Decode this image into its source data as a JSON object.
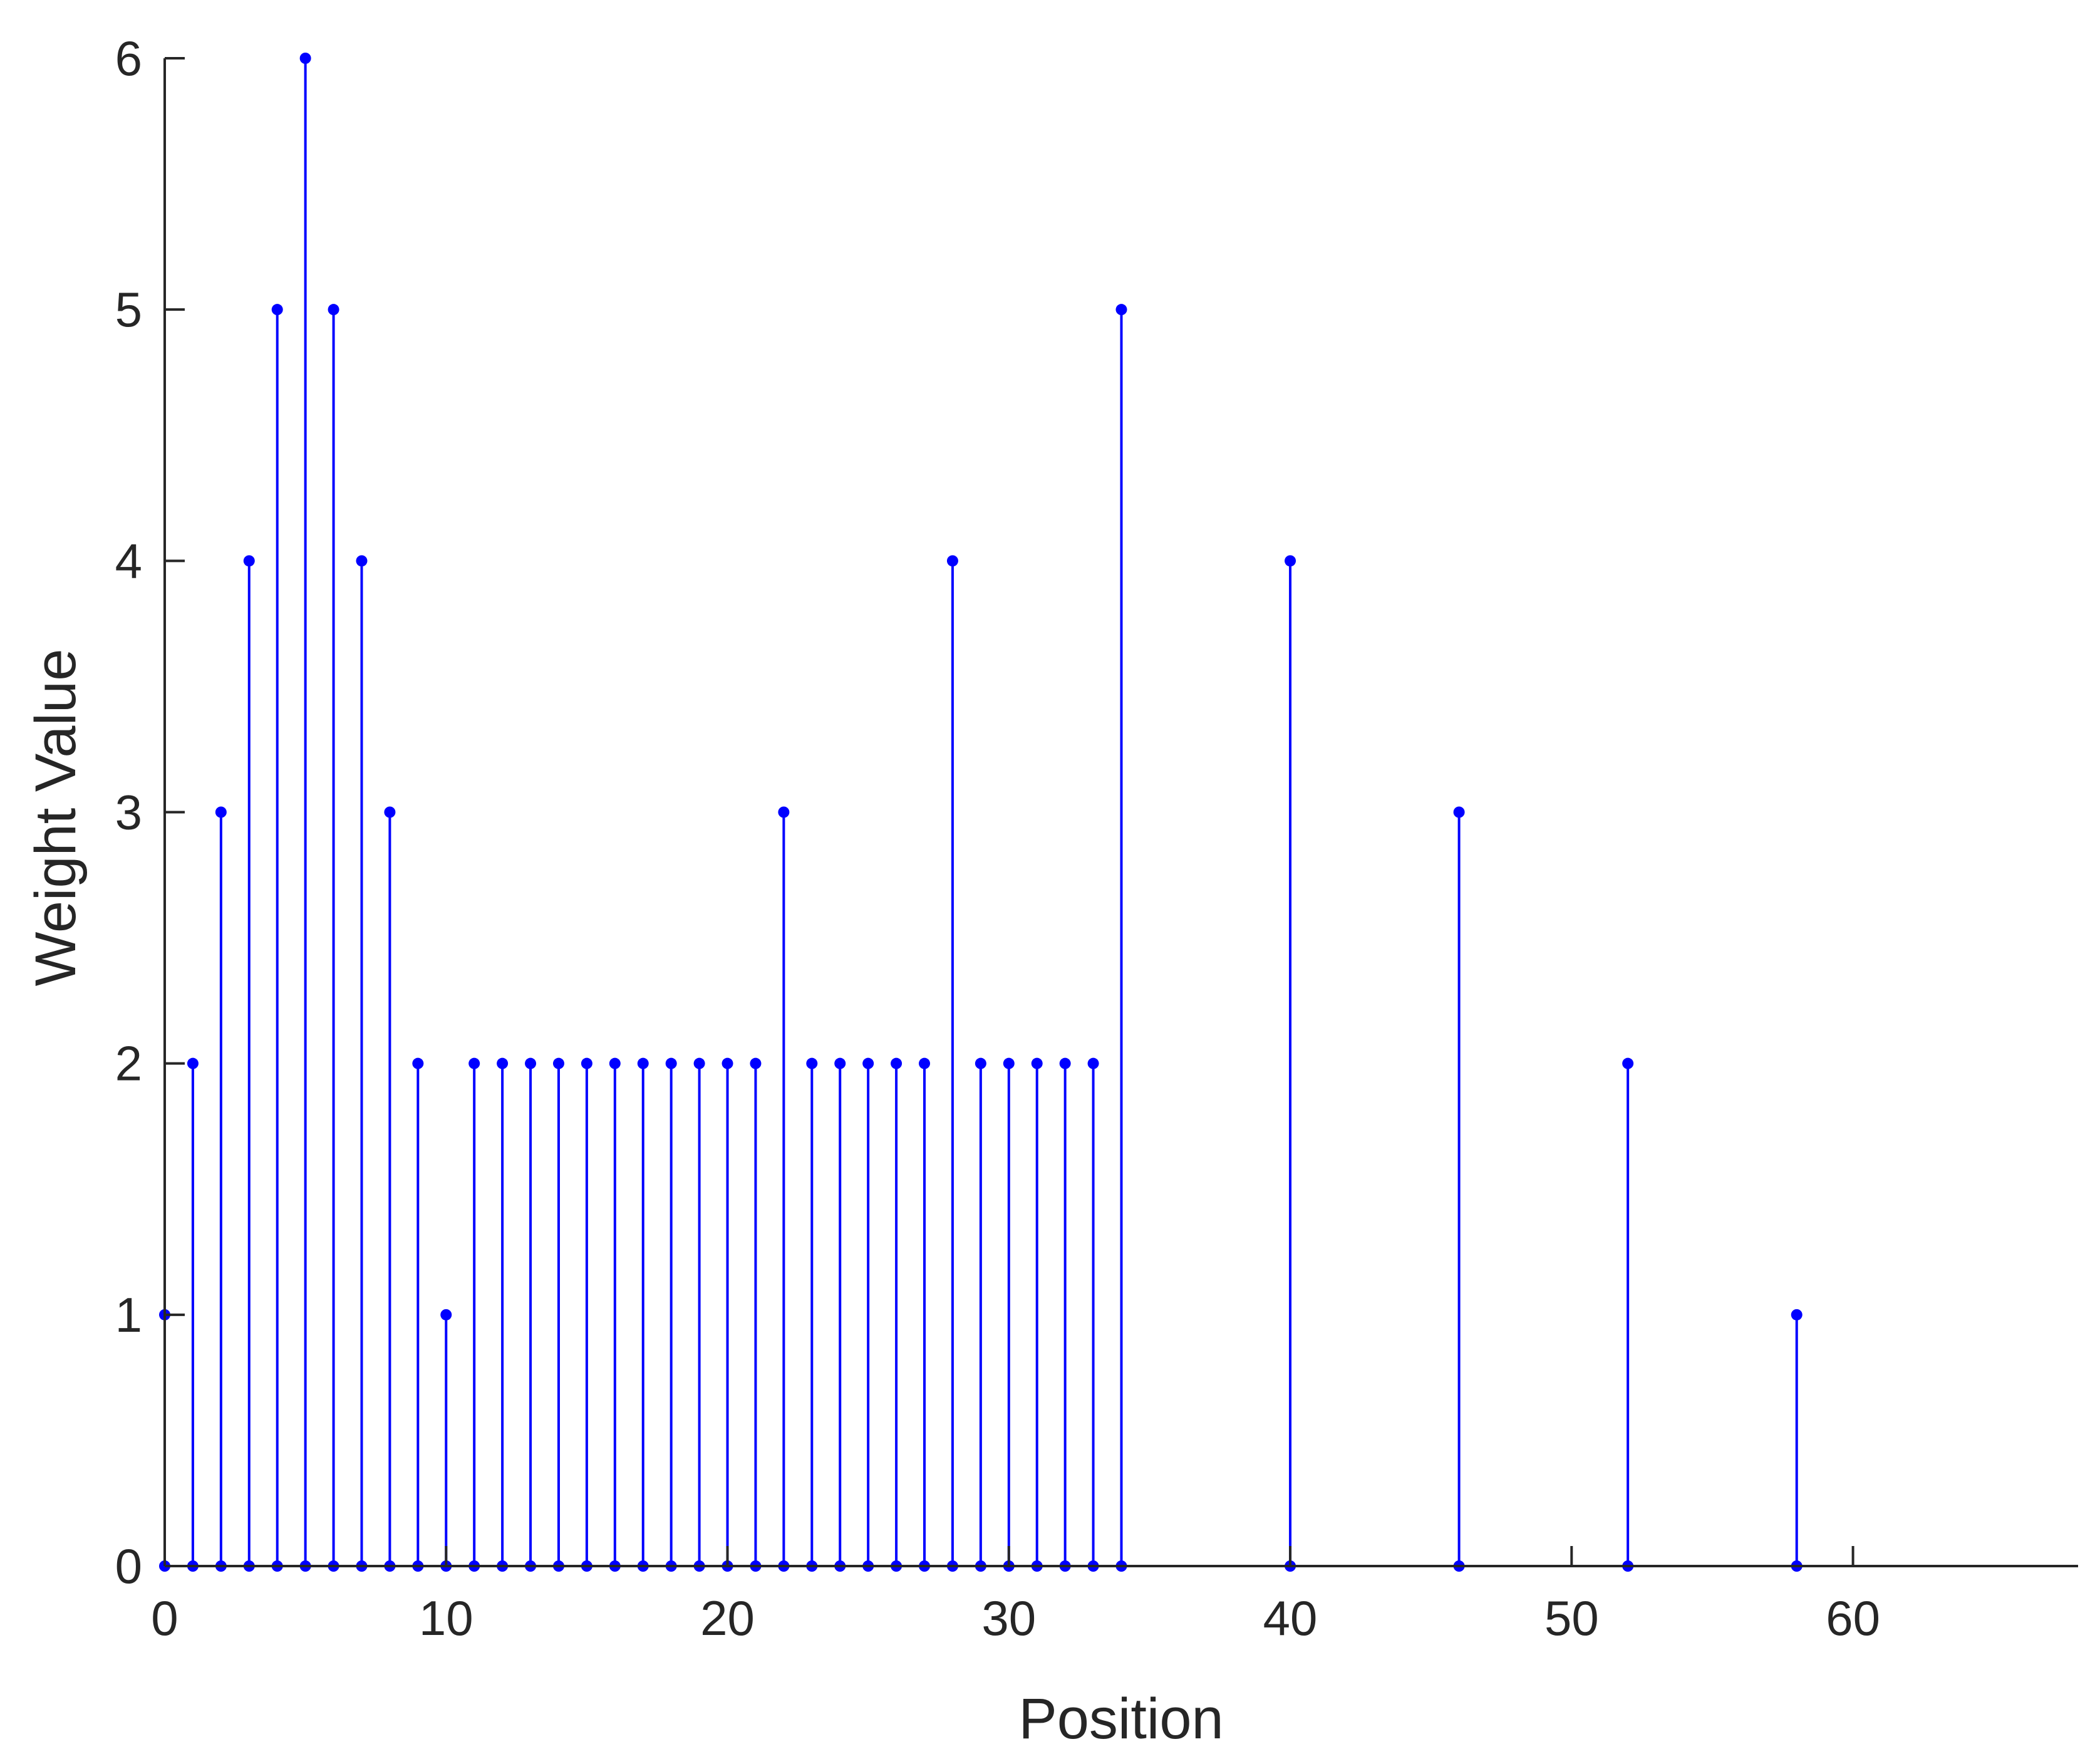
{
  "chart_data": {
    "type": "stem",
    "xlabel": "Position",
    "ylabel": "Weight Value",
    "xlim": [
      0,
      68
    ],
    "ylim": [
      0,
      6
    ],
    "xticks": [
      0,
      10,
      20,
      30,
      40,
      50,
      60
    ],
    "yticks": [
      0,
      1,
      2,
      3,
      4,
      5,
      6
    ],
    "grid": false,
    "legend": null,
    "color": "#0000ff",
    "axis_color": "#262626",
    "series": [
      {
        "x": [
          0,
          1,
          2,
          3,
          4,
          5,
          6,
          7,
          8,
          9,
          10,
          11,
          12,
          13,
          14,
          15,
          16,
          17,
          18,
          19,
          20,
          21,
          22,
          23,
          24,
          25,
          26,
          27,
          28,
          29,
          30,
          31,
          32,
          33,
          34,
          40,
          46,
          52,
          58
        ],
        "y": [
          1,
          2,
          3,
          4,
          5,
          6,
          5,
          4,
          3,
          2,
          1,
          2,
          2,
          2,
          2,
          2,
          2,
          2,
          2,
          2,
          2,
          2,
          3,
          2,
          2,
          2,
          2,
          2,
          4,
          2,
          2,
          2,
          2,
          2,
          5,
          4,
          3,
          2,
          1
        ]
      }
    ]
  }
}
